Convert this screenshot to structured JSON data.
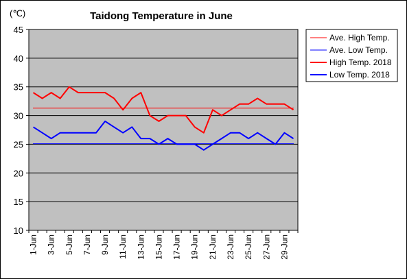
{
  "chart_data": {
    "type": "line",
    "title": "Taidong Temperature in June",
    "unit_label": "(℃)",
    "ylim": [
      10,
      45
    ],
    "yticks": [
      10,
      15,
      20,
      25,
      30,
      35,
      40,
      45
    ],
    "x": [
      "1-Jun",
      "2-Jun",
      "3-Jun",
      "4-Jun",
      "5-Jun",
      "6-Jun",
      "7-Jun",
      "8-Jun",
      "9-Jun",
      "10-Jun",
      "11-Jun",
      "12-Jun",
      "13-Jun",
      "14-Jun",
      "15-Jun",
      "16-Jun",
      "17-Jun",
      "18-Jun",
      "19-Jun",
      "20-Jun",
      "21-Jun",
      "22-Jun",
      "23-Jun",
      "24-Jun",
      "25-Jun",
      "26-Jun",
      "27-Jun",
      "28-Jun",
      "29-Jun",
      "30-Jun"
    ],
    "x_tick_labels": [
      "1-Jun",
      "3-Jun",
      "5-Jun",
      "7-Jun",
      "9-Jun",
      "11-Jun",
      "13-Jun",
      "15-Jun",
      "17-Jun",
      "19-Jun",
      "21-Jun",
      "23-Jun",
      "25-Jun",
      "27-Jun",
      "29-Jun"
    ],
    "grid": "horizontal",
    "legend_position": "right",
    "plot_background": "#c0c0c0",
    "series": [
      {
        "name": "Ave. High Temp.",
        "color": "#ff0000",
        "style": "thin",
        "values": [
          31.3,
          31.3,
          31.3,
          31.3,
          31.3,
          31.3,
          31.3,
          31.3,
          31.3,
          31.3,
          31.3,
          31.3,
          31.3,
          31.3,
          31.3,
          31.3,
          31.3,
          31.3,
          31.3,
          31.3,
          31.3,
          31.3,
          31.3,
          31.3,
          31.3,
          31.3,
          31.3,
          31.3,
          31.3,
          31.3
        ]
      },
      {
        "name": "Ave. Low Temp.",
        "color": "#0000ff",
        "style": "thin",
        "values": [
          25.1,
          25.1,
          25.1,
          25.1,
          25.1,
          25.1,
          25.1,
          25.1,
          25.1,
          25.1,
          25.1,
          25.1,
          25.1,
          25.1,
          25.1,
          25.1,
          25.1,
          25.1,
          25.1,
          25.1,
          25.1,
          25.1,
          25.1,
          25.1,
          25.1,
          25.1,
          25.1,
          25.1,
          25.1,
          25.1
        ]
      },
      {
        "name": "High Temp. 2018",
        "color": "#ff0000",
        "style": "thick",
        "values": [
          34,
          33,
          34,
          33,
          35,
          34,
          34,
          34,
          34,
          33,
          31,
          33,
          34,
          30,
          29,
          30,
          30,
          30,
          28,
          27,
          31,
          30,
          31,
          32,
          32,
          33,
          32,
          32,
          32,
          31
        ]
      },
      {
        "name": "Low Temp. 2018",
        "color": "#0000ff",
        "style": "thick",
        "values": [
          28,
          27,
          26,
          27,
          27,
          27,
          27,
          27,
          29,
          28,
          27,
          28,
          26,
          26,
          25,
          26,
          25,
          25,
          25,
          24,
          25,
          26,
          27,
          27,
          26,
          27,
          26,
          25,
          27,
          26
        ]
      }
    ]
  }
}
